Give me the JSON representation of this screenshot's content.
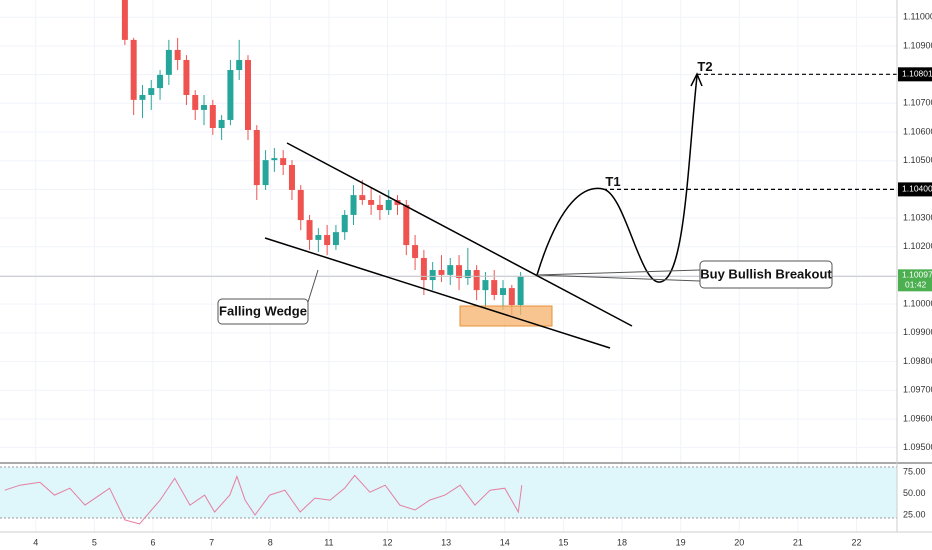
{
  "chart_data": [
    {
      "type": "candlestick",
      "x": [
        1.52,
        1.67,
        1.82,
        1.97,
        2.12,
        2.27,
        2.42,
        2.57,
        2.72,
        2.87,
        3.02,
        3.17,
        3.32,
        3.47,
        3.62,
        3.77,
        3.92,
        4.07,
        4.22,
        4.37,
        4.52,
        4.67,
        4.82,
        4.97,
        5.12,
        5.27,
        5.42,
        5.57,
        5.72,
        5.87,
        6.02,
        6.17,
        6.32,
        6.47,
        6.62,
        6.77,
        6.92,
        7.07,
        7.22,
        7.37,
        7.52,
        7.67,
        7.82,
        7.97,
        8.12,
        8.27
      ],
      "open": [
        1.1106,
        1.10921,
        1.10712,
        1.10729,
        1.10753,
        1.10799,
        1.10886,
        1.10851,
        1.10729,
        1.10677,
        1.10694,
        1.10614,
        1.10642,
        1.10816,
        1.10851,
        1.10607,
        1.10415,
        1.10502,
        1.10509,
        1.10485,
        1.10398,
        1.10293,
        1.10224,
        1.10241,
        1.10206,
        1.10251,
        1.10311,
        1.1038,
        1.10363,
        1.10346,
        1.10328,
        1.10363,
        1.10346,
        1.10206,
        1.10161,
        1.10084,
        1.10119,
        1.10102,
        1.10136,
        1.10091,
        1.10119,
        1.10049,
        1.10084,
        1.10032,
        1.10056,
        1.09997
      ],
      "high": [
        1.1106,
        1.10928,
        1.10764,
        1.10781,
        1.10816,
        1.10921,
        1.10928,
        1.10868,
        1.10746,
        1.10729,
        1.10712,
        1.10659,
        1.10851,
        1.10921,
        1.10868,
        1.10624,
        1.10537,
        1.10544,
        1.10537,
        1.10502,
        1.10415,
        1.10311,
        1.10265,
        1.10276,
        1.10276,
        1.10328,
        1.10415,
        1.10433,
        1.10405,
        1.1038,
        1.10398,
        1.1038,
        1.10363,
        1.10241,
        1.10189,
        1.10147,
        1.10171,
        1.10161,
        1.10171,
        1.10196,
        1.10136,
        1.10112,
        1.10119,
        1.10084,
        1.10067,
        1.10112
      ],
      "low": [
        1.10903,
        1.10659,
        1.10649,
        1.10677,
        1.10712,
        1.10764,
        1.10816,
        1.10694,
        1.10642,
        1.10624,
        1.1059,
        1.10572,
        1.10624,
        1.10781,
        1.10572,
        1.10363,
        1.10398,
        1.10461,
        1.1045,
        1.10363,
        1.10258,
        1.10189,
        1.10182,
        1.10171,
        1.10189,
        1.10224,
        1.10276,
        1.10346,
        1.10311,
        1.10293,
        1.10311,
        1.10311,
        1.10171,
        1.10119,
        1.10032,
        1.10049,
        1.10077,
        1.10067,
        1.10049,
        1.10067,
        1.10014,
        1.09987,
        1.10014,
        1.0998,
        1.09962,
        1.09962
      ],
      "close": [
        1.10921,
        1.10712,
        1.10729,
        1.10753,
        1.10799,
        1.10886,
        1.10851,
        1.10729,
        1.10677,
        1.10694,
        1.10614,
        1.10642,
        1.10816,
        1.10851,
        1.10607,
        1.10415,
        1.10502,
        1.10509,
        1.10485,
        1.10398,
        1.10293,
        1.10224,
        1.10241,
        1.10206,
        1.10251,
        1.10311,
        1.1038,
        1.10363,
        1.10346,
        1.10328,
        1.10363,
        1.10346,
        1.10206,
        1.10161,
        1.10084,
        1.10119,
        1.10102,
        1.10136,
        1.10091,
        1.10119,
        1.10049,
        1.10084,
        1.10032,
        1.10056,
        1.09997,
        1.10097
      ],
      "up_color": "#26a69a",
      "down_color": "#ef5350",
      "xlim": [
        -0.61,
        14.69
      ],
      "ylim": [
        1.0945,
        1.1106
      ],
      "yticks": [
        {
          "value": 1.11,
          "label": "1.11000"
        },
        {
          "value": 1.109,
          "label": "1.10900"
        },
        {
          "value": 1.108,
          "label": "1.10800"
        },
        {
          "value": 1.107,
          "label": "1.10700"
        },
        {
          "value": 1.106,
          "label": "1.10600"
        },
        {
          "value": 1.105,
          "label": "1.10500"
        },
        {
          "value": 1.104,
          "label": "1.10400"
        },
        {
          "value": 1.103,
          "label": "1.10300"
        },
        {
          "value": 1.102,
          "label": "1.10200"
        },
        {
          "value": 1.101,
          "label": "1.10100"
        },
        {
          "value": 1.1,
          "label": "1.10000"
        },
        {
          "value": 1.099,
          "label": "1.09900"
        },
        {
          "value": 1.098,
          "label": "1.09800"
        },
        {
          "value": 1.097,
          "label": "1.09700"
        },
        {
          "value": 1.096,
          "label": "1.09600"
        },
        {
          "value": 1.095,
          "label": "1.09500"
        }
      ],
      "grid": true,
      "last_price": 1.10097,
      "countdown": "01:42",
      "levels": [
        {
          "name": "T1",
          "price": {
            "value": 1.104,
            "label": "1.10400"
          }
        },
        {
          "name": "T2",
          "price": 1.10801
        }
      ],
      "annotations": [
        "Falling Wedge",
        "Buy Bullish Breakout"
      ]
    },
    {
      "type": "line",
      "x": [
        -0.53,
        -0.27,
        0.07,
        0.32,
        0.58,
        0.84,
        1.09,
        1.26,
        1.52,
        1.77,
        2.12,
        2.37,
        2.63,
        2.88,
        3.05,
        3.31,
        3.43,
        3.57,
        3.74,
        3.99,
        4.25,
        4.51,
        4.76,
        5.02,
        5.27,
        5.44,
        5.7,
        5.96,
        6.21,
        6.47,
        6.72,
        6.98,
        7.24,
        7.49,
        7.75,
        8.0,
        8.23,
        8.29
      ],
      "values": [
        54.1,
        59.9,
        63.4,
        48.3,
        56.4,
        36.6,
        48.3,
        56.4,
        19.2,
        14.5,
        42.4,
        68.0,
        36.6,
        48.3,
        28.5,
        48.3,
        70.3,
        42.4,
        25.0,
        48.3,
        54.1,
        28.5,
        44.8,
        42.4,
        56.4,
        71.5,
        51.7,
        59.9,
        36.6,
        30.8,
        42.4,
        48.3,
        59.9,
        36.6,
        54.1,
        56.4,
        28.5,
        59.9
      ],
      "color": "#e57fa0",
      "xlim": [
        -0.61,
        14.69
      ],
      "ylim": [
        5,
        86
      ],
      "yticks": [
        {
          "value": 75,
          "label": "75.00"
        },
        {
          "value": 50,
          "label": "50.00"
        },
        {
          "value": 25,
          "label": "25.00"
        }
      ],
      "xticks": [
        {
          "value": 0,
          "label": "4"
        },
        {
          "value": 1,
          "label": "5"
        },
        {
          "value": 2,
          "label": "6"
        },
        {
          "value": 3,
          "label": "7"
        },
        {
          "value": 4,
          "label": "8"
        },
        {
          "value": 5,
          "label": "11"
        },
        {
          "value": 6,
          "label": "12"
        },
        {
          "value": 7,
          "label": "13"
        },
        {
          "value": 8,
          "label": "14"
        },
        {
          "value": 9,
          "label": "15"
        },
        {
          "value": 10,
          "label": "18"
        },
        {
          "value": 11,
          "label": "19"
        },
        {
          "value": 12,
          "label": "20"
        },
        {
          "value": 13,
          "label": "21"
        },
        {
          "value": 14,
          "label": "22"
        }
      ],
      "grid": true
    }
  ]
}
